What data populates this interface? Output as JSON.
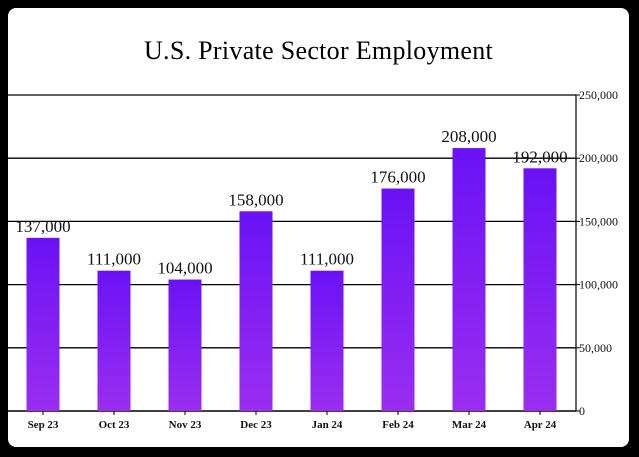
{
  "chart_data": {
    "type": "bar",
    "title": "U.S. Private Sector Employment",
    "categories": [
      "Sep 23",
      "Oct 23",
      "Nov 23",
      "Dec 23",
      "Jan 24",
      "Feb 24",
      "Mar 24",
      "Apr 24"
    ],
    "values": [
      137000,
      111000,
      104000,
      158000,
      111000,
      176000,
      208000,
      192000
    ],
    "data_labels": [
      "137,000",
      "111,000",
      "104,000",
      "158,000",
      "111,000",
      "176,000",
      "208,000",
      "192,000"
    ],
    "yticks": [
      0,
      50000,
      100000,
      150000,
      200000,
      250000
    ],
    "ytick_labels": [
      "0",
      "50,000",
      "100,000",
      "150,000",
      "200,000",
      "250,000"
    ],
    "ylim": [
      0,
      250000
    ],
    "y_axis_side": "right",
    "grid": true,
    "bar_color_top": "#6a12f5",
    "bar_color_bottom": "#9a2ef0"
  }
}
